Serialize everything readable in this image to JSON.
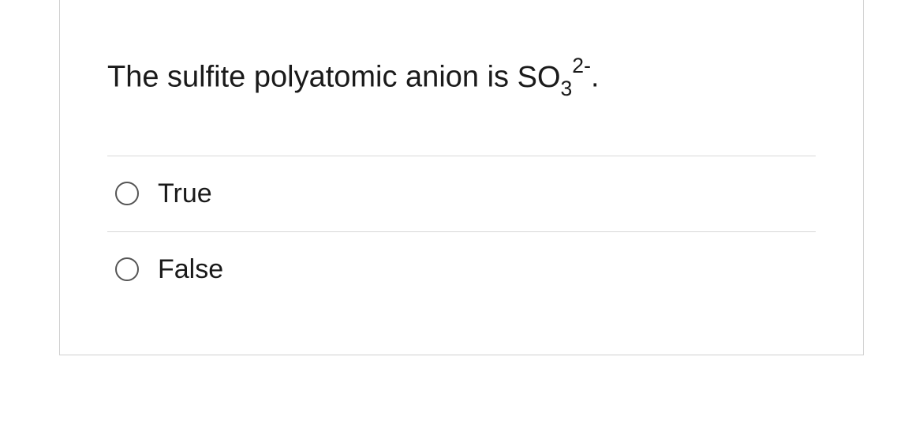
{
  "question": {
    "prefix_text": "The sulfite polyatomic anion is ",
    "formula_base": "SO",
    "formula_sub": "3",
    "formula_sup": "2-",
    "suffix_text": "."
  },
  "options": [
    {
      "label": "True"
    },
    {
      "label": "False"
    }
  ],
  "styling": {
    "card_border_color": "#d0d0d0",
    "divider_color": "#d8d8d8",
    "radio_border_color": "#555555",
    "text_color": "#1a1a1a",
    "background_color": "#ffffff",
    "question_fontsize": 38,
    "option_fontsize": 34,
    "font_weight": 300
  }
}
